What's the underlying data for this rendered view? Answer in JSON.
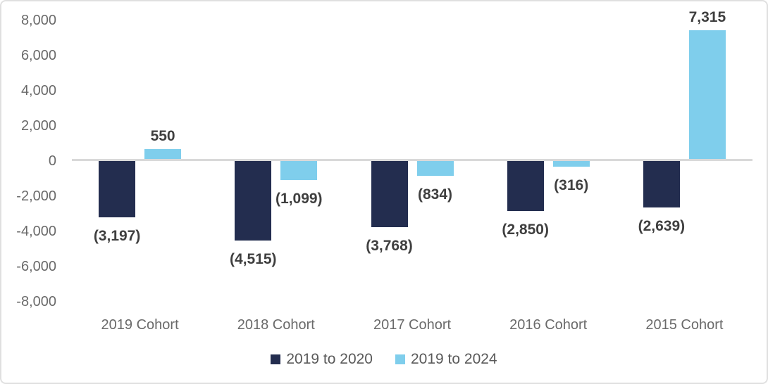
{
  "chart_data": {
    "type": "bar",
    "title": "",
    "xlabel": "",
    "ylabel": "",
    "grid": false,
    "legend_position": "bottom",
    "categories": [
      "2019 Cohort",
      "2018 Cohort",
      "2017 Cohort",
      "2016 Cohort",
      "2015 Cohort"
    ],
    "series": [
      {
        "name": "2019 to 2020",
        "color": "#232d4f",
        "values": [
          -3197,
          -4515,
          -3768,
          -2850,
          -2639
        ],
        "labels": [
          "(3,197)",
          "(4,515)",
          "(3,768)",
          "(2,850)",
          "(2,639)"
        ]
      },
      {
        "name": "2019 to 2024",
        "color": "#7fceec",
        "values": [
          550,
          -1099,
          -834,
          -316,
          7315
        ],
        "labels": [
          "550",
          "(1,099)",
          "(834)",
          "(316)",
          "7,315"
        ]
      }
    ],
    "ylim": [
      -8000,
      8000
    ],
    "yticks": [
      {
        "value": 8000,
        "label": "8,000"
      },
      {
        "value": 6000,
        "label": "6,000"
      },
      {
        "value": 4000,
        "label": "4,000"
      },
      {
        "value": 2000,
        "label": "2,000"
      },
      {
        "value": 0,
        "label": "0"
      },
      {
        "value": -2000,
        "label": "-2,000"
      },
      {
        "value": -4000,
        "label": "-4,000"
      },
      {
        "value": -6000,
        "label": "-6,000"
      },
      {
        "value": -8000,
        "label": "-8,000"
      }
    ],
    "axis_line_color": "#d9d9d9",
    "tick_label_color": "#6a6a6a",
    "data_label_color": "#3f3f3f",
    "legend_text_color": "#595959"
  }
}
